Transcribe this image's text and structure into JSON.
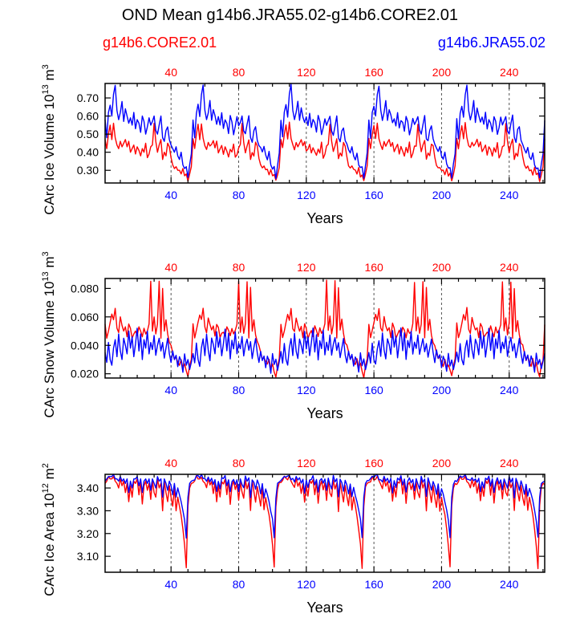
{
  "title": "OND Mean g14b6.JRA55.02-g14b6.CORE2.01",
  "legend": {
    "left": {
      "label": "g14b6.CORE2.01",
      "color": "#ff0000"
    },
    "right": {
      "label": "g14b6.JRA55.02",
      "color": "#0000ff"
    }
  },
  "colors": {
    "core": "#ff0000",
    "jra": "#0000ff",
    "axis": "#000000",
    "grid": "#555555"
  },
  "chart_data": [
    {
      "type": "line",
      "id": "ice_volume",
      "ylabel": "CArc Ice Volume 10^13 m^3",
      "ylabel_main": "CArc Ice Volume 10",
      "ylabel_exp": "13",
      "ylabel_unit": "m",
      "ylabel_unit_exp": "3",
      "xlabel": "Years",
      "xlim": [
        1,
        261
      ],
      "ylim": [
        0.23,
        0.78
      ],
      "yticks": [
        "0.30",
        "0.40",
        "0.50",
        "0.60",
        "0.70"
      ],
      "xticks_bottom": [
        "40",
        "80",
        "120",
        "160",
        "200",
        "240"
      ],
      "xticks_top": [
        "40",
        "80",
        "120",
        "160",
        "200",
        "240"
      ],
      "cycle_length": 52,
      "series": [
        {
          "name": "g14b6.CORE2.01",
          "color": "#ff0000",
          "base_cycle": [
            0.47,
            0.42,
            0.5,
            0.55,
            0.47,
            0.56,
            0.48,
            0.44,
            0.42,
            0.46,
            0.43,
            0.45,
            0.47,
            0.43,
            0.46,
            0.4,
            0.42,
            0.44,
            0.39,
            0.43,
            0.41,
            0.38,
            0.42,
            0.4,
            0.45,
            0.37,
            0.39,
            0.43,
            0.44,
            0.56,
            0.46,
            0.4,
            0.44,
            0.47,
            0.36,
            0.4,
            0.38,
            0.45,
            0.43,
            0.37,
            0.33,
            0.31,
            0.32,
            0.3,
            0.3,
            0.28,
            0.31,
            0.27,
            0.28,
            0.24,
            0.28,
            0.32
          ]
        },
        {
          "name": "g14b6.JRA55.02",
          "color": "#0000ff",
          "base_cycle": [
            0.58,
            0.48,
            0.62,
            0.66,
            0.6,
            0.72,
            0.77,
            0.63,
            0.58,
            0.62,
            0.68,
            0.57,
            0.64,
            0.6,
            0.56,
            0.59,
            0.55,
            0.62,
            0.53,
            0.58,
            0.56,
            0.51,
            0.6,
            0.57,
            0.5,
            0.54,
            0.59,
            0.55,
            0.57,
            0.6,
            0.52,
            0.5,
            0.55,
            0.6,
            0.48,
            0.46,
            0.52,
            0.54,
            0.47,
            0.44,
            0.42,
            0.4,
            0.43,
            0.38,
            0.36,
            0.4,
            0.33,
            0.31,
            0.32,
            0.26,
            0.33,
            0.39
          ]
        }
      ]
    },
    {
      "type": "line",
      "id": "snow_volume",
      "ylabel": "CArc Snow Volume 10^13 m^3",
      "ylabel_main": "CArc Snow Volume 10",
      "ylabel_exp": "13",
      "ylabel_unit": "m",
      "ylabel_unit_exp": "3",
      "xlabel": "Years",
      "xlim": [
        1,
        261
      ],
      "ylim": [
        0.017,
        0.087
      ],
      "yticks": [
        "0.020",
        "0.040",
        "0.060",
        "0.080"
      ],
      "xticks_bottom": [
        "40",
        "80",
        "120",
        "160",
        "200",
        "240"
      ],
      "xticks_top": [
        "40",
        "80",
        "120",
        "160",
        "200",
        "240"
      ],
      "cycle_length": 52,
      "series": [
        {
          "name": "g14b6.CORE2.01",
          "color": "#ff0000",
          "base_cycle": [
            0.055,
            0.045,
            0.05,
            0.056,
            0.062,
            0.058,
            0.066,
            0.052,
            0.049,
            0.06,
            0.054,
            0.05,
            0.053,
            0.046,
            0.055,
            0.052,
            0.045,
            0.048,
            0.05,
            0.047,
            0.053,
            0.05,
            0.046,
            0.052,
            0.048,
            0.05,
            0.055,
            0.085,
            0.05,
            0.06,
            0.048,
            0.055,
            0.085,
            0.045,
            0.08,
            0.05,
            0.058,
            0.048,
            0.042,
            0.04,
            0.035,
            0.03,
            0.032,
            0.028,
            0.026,
            0.03,
            0.024,
            0.027,
            0.022,
            0.018,
            0.026,
            0.03
          ]
        },
        {
          "name": "g14b6.JRA55.02",
          "color": "#0000ff",
          "base_cycle": [
            0.035,
            0.028,
            0.042,
            0.03,
            0.026,
            0.038,
            0.044,
            0.032,
            0.048,
            0.036,
            0.03,
            0.045,
            0.04,
            0.034,
            0.05,
            0.038,
            0.046,
            0.032,
            0.041,
            0.052,
            0.036,
            0.048,
            0.03,
            0.044,
            0.038,
            0.05,
            0.034,
            0.042,
            0.037,
            0.047,
            0.033,
            0.04,
            0.045,
            0.036,
            0.042,
            0.031,
            0.038,
            0.045,
            0.034,
            0.028,
            0.036,
            0.03,
            0.033,
            0.025,
            0.032,
            0.029,
            0.021,
            0.034,
            0.026,
            0.03,
            0.023,
            0.028
          ]
        }
      ]
    },
    {
      "type": "line",
      "id": "ice_area",
      "ylabel": "CArc Ice Area 10^12 m^2",
      "ylabel_main": "CArc Ice Area 10",
      "ylabel_exp": "12",
      "ylabel_unit": "m",
      "ylabel_unit_exp": "2",
      "xlabel": "Years",
      "xlim": [
        1,
        261
      ],
      "ylim": [
        3.03,
        3.46
      ],
      "yticks": [
        "3.10",
        "3.20",
        "3.30",
        "3.40"
      ],
      "xticks_bottom": [
        "40",
        "80",
        "120",
        "160",
        "200",
        "240"
      ],
      "xticks_top": [
        "40",
        "80",
        "120",
        "160",
        "200",
        "240"
      ],
      "cycle_length": 52,
      "series": [
        {
          "name": "g14b6.CORE2.01",
          "color": "#ff0000",
          "base_cycle": [
            3.42,
            3.43,
            3.45,
            3.44,
            3.44,
            3.45,
            3.43,
            3.42,
            3.4,
            3.44,
            3.41,
            3.43,
            3.38,
            3.42,
            3.34,
            3.41,
            3.36,
            3.43,
            3.42,
            3.44,
            3.37,
            3.43,
            3.33,
            3.41,
            3.43,
            3.39,
            3.42,
            3.35,
            3.43,
            3.38,
            3.36,
            3.44,
            3.4,
            3.42,
            3.3,
            3.43,
            3.38,
            3.34,
            3.41,
            3.36,
            3.32,
            3.4,
            3.3,
            3.36,
            3.32,
            3.28,
            3.22,
            3.15,
            3.05,
            3.32,
            3.4,
            3.42
          ]
        },
        {
          "name": "g14b6.JRA55.02",
          "color": "#0000ff",
          "base_cycle": [
            3.43,
            3.44,
            3.45,
            3.45,
            3.45,
            3.46,
            3.44,
            3.44,
            3.43,
            3.45,
            3.43,
            3.44,
            3.42,
            3.44,
            3.38,
            3.43,
            3.4,
            3.44,
            3.44,
            3.45,
            3.41,
            3.44,
            3.38,
            3.43,
            3.44,
            3.42,
            3.44,
            3.39,
            3.44,
            3.42,
            3.4,
            3.45,
            3.43,
            3.44,
            3.36,
            3.44,
            3.42,
            3.39,
            3.43,
            3.41,
            3.37,
            3.42,
            3.36,
            3.4,
            3.37,
            3.34,
            3.3,
            3.26,
            3.18,
            3.36,
            3.42,
            3.43
          ]
        }
      ]
    }
  ]
}
